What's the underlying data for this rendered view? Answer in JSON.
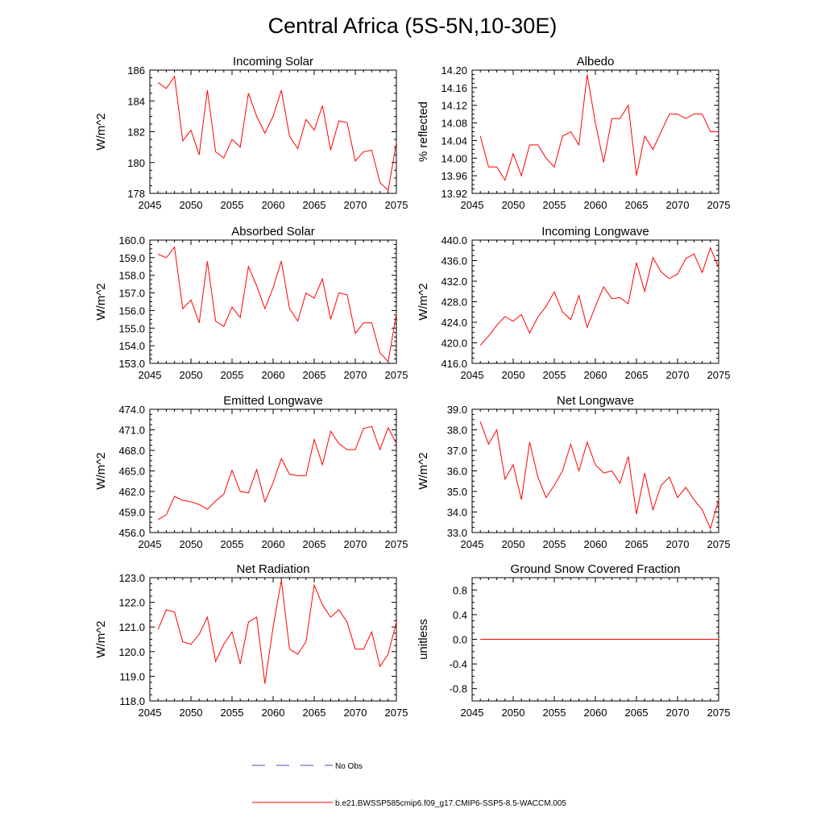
{
  "page": {
    "title": "Central Africa (5S-5N,10-30E)"
  },
  "legend": {
    "items": [
      {
        "label": "No Obs",
        "color": "#4a4aa8",
        "dashed": true
      },
      {
        "label": "b.e21.BWSSP585cmip6.f09_g17.CMIP6-SSP5-8.5-WACCM.005",
        "color": "#ff0000",
        "dashed": false
      }
    ]
  },
  "chart_data": [
    {
      "type": "line",
      "title": "Incoming Solar",
      "ylabel": "W/m^2",
      "xlim": [
        2045,
        2075
      ],
      "ylim": [
        178,
        186
      ],
      "xticks": [
        2045,
        2050,
        2055,
        2060,
        2065,
        2070,
        2075
      ],
      "xtick_labels": [
        "2045",
        "2050",
        "2055",
        "2060",
        "2065",
        "2070",
        "2075"
      ],
      "yticks": [
        178,
        180,
        182,
        184,
        186
      ],
      "ytick_labels": [
        "178",
        "180",
        "182",
        "184",
        "186"
      ],
      "x": [
        2046,
        2047,
        2048,
        2049,
        2050,
        2051,
        2052,
        2053,
        2054,
        2055,
        2056,
        2057,
        2058,
        2059,
        2060,
        2061,
        2062,
        2063,
        2064,
        2065,
        2066,
        2067,
        2068,
        2069,
        2070,
        2071,
        2072,
        2073,
        2074,
        2075
      ],
      "series": [
        {
          "color": "#ff0000",
          "values": [
            185.2,
            184.8,
            185.6,
            181.4,
            182.1,
            180.5,
            184.7,
            180.7,
            180.3,
            181.5,
            181.0,
            184.5,
            183.0,
            181.9,
            183.0,
            184.7,
            181.7,
            180.9,
            182.8,
            182.1,
            183.7,
            180.8,
            182.7,
            182.6,
            180.1,
            180.7,
            180.8,
            178.7,
            178.2,
            181.3
          ]
        }
      ]
    },
    {
      "type": "line",
      "title": "Albedo",
      "ylabel": "% reflected",
      "xlim": [
        2045,
        2075
      ],
      "ylim": [
        13.92,
        14.2
      ],
      "xticks": [
        2045,
        2050,
        2055,
        2060,
        2065,
        2070,
        2075
      ],
      "xtick_labels": [
        "2045",
        "2050",
        "2055",
        "2060",
        "2065",
        "2070",
        "2075"
      ],
      "yticks": [
        13.92,
        13.96,
        14.0,
        14.04,
        14.08,
        14.12,
        14.16,
        14.2
      ],
      "ytick_labels": [
        "13.92",
        "13.96",
        "14.00",
        "14.04",
        "14.08",
        "14.12",
        "14.16",
        "14.20"
      ],
      "x": [
        2046,
        2047,
        2048,
        2049,
        2050,
        2051,
        2052,
        2053,
        2054,
        2055,
        2056,
        2057,
        2058,
        2059,
        2060,
        2061,
        2062,
        2063,
        2064,
        2065,
        2066,
        2067,
        2068,
        2069,
        2070,
        2071,
        2072,
        2073,
        2074,
        2075
      ],
      "series": [
        {
          "color": "#ff0000",
          "values": [
            14.05,
            13.98,
            13.98,
            13.95,
            14.01,
            13.96,
            14.03,
            14.03,
            14.0,
            13.98,
            14.05,
            14.06,
            14.03,
            14.19,
            14.08,
            13.99,
            14.09,
            14.09,
            14.12,
            13.96,
            14.05,
            14.02,
            14.06,
            14.1,
            14.1,
            14.09,
            14.1,
            14.1,
            14.06,
            14.06
          ]
        }
      ]
    },
    {
      "type": "line",
      "title": "Absorbed Solar",
      "ylabel": "W/m^2",
      "xlim": [
        2045,
        2075
      ],
      "ylim": [
        153,
        160
      ],
      "xticks": [
        2045,
        2050,
        2055,
        2060,
        2065,
        2070,
        2075
      ],
      "xtick_labels": [
        "2045",
        "2050",
        "2055",
        "2060",
        "2065",
        "2070",
        "2075"
      ],
      "yticks": [
        153,
        154,
        155,
        156,
        157,
        158,
        159,
        160
      ],
      "ytick_labels": [
        "153.0",
        "154.0",
        "155.0",
        "156.0",
        "157.0",
        "158.0",
        "159.0",
        "160.0"
      ],
      "x": [
        2046,
        2047,
        2048,
        2049,
        2050,
        2051,
        2052,
        2053,
        2054,
        2055,
        2056,
        2057,
        2058,
        2059,
        2060,
        2061,
        2062,
        2063,
        2064,
        2065,
        2066,
        2067,
        2068,
        2069,
        2070,
        2071,
        2072,
        2073,
        2074,
        2075
      ],
      "series": [
        {
          "color": "#ff0000",
          "values": [
            159.2,
            159.0,
            159.6,
            156.1,
            156.6,
            155.3,
            158.8,
            155.4,
            155.1,
            156.2,
            155.6,
            158.5,
            157.4,
            156.1,
            157.3,
            158.8,
            156.1,
            155.4,
            157.0,
            156.7,
            157.8,
            155.5,
            157.0,
            156.9,
            154.7,
            155.3,
            155.3,
            153.6,
            153.1,
            155.8
          ]
        }
      ]
    },
    {
      "type": "line",
      "title": "Incoming Longwave",
      "ylabel": "W/m^2",
      "xlim": [
        2045,
        2075
      ],
      "ylim": [
        416,
        440
      ],
      "xticks": [
        2045,
        2050,
        2055,
        2060,
        2065,
        2070,
        2075
      ],
      "xtick_labels": [
        "2045",
        "2050",
        "2055",
        "2060",
        "2065",
        "2070",
        "2075"
      ],
      "yticks": [
        416,
        420,
        424,
        428,
        432,
        436,
        440
      ],
      "ytick_labels": [
        "416.0",
        "420.0",
        "424.0",
        "428.0",
        "432.0",
        "436.0",
        "440.0"
      ],
      "x": [
        2046,
        2047,
        2048,
        2049,
        2050,
        2051,
        2052,
        2053,
        2054,
        2055,
        2056,
        2057,
        2058,
        2059,
        2060,
        2061,
        2062,
        2063,
        2064,
        2065,
        2066,
        2067,
        2068,
        2069,
        2070,
        2071,
        2072,
        2073,
        2074,
        2075
      ],
      "series": [
        {
          "color": "#ff0000",
          "values": [
            419.5,
            421.3,
            423.4,
            425.1,
            424.2,
            425.5,
            421.9,
            425.0,
            427.1,
            429.9,
            426.0,
            424.5,
            429.2,
            423.0,
            427.1,
            430.9,
            428.6,
            428.8,
            427.6,
            435.6,
            430.0,
            436.6,
            433.8,
            432.5,
            433.4,
            436.4,
            437.3,
            433.7,
            438.5,
            434.6
          ]
        }
      ]
    },
    {
      "type": "line",
      "title": "Emitted Longwave",
      "ylabel": "W/m^2",
      "xlim": [
        2045,
        2075
      ],
      "ylim": [
        456,
        474
      ],
      "xticks": [
        2045,
        2050,
        2055,
        2060,
        2065,
        2070,
        2075
      ],
      "xtick_labels": [
        "2045",
        "2050",
        "2055",
        "2060",
        "2065",
        "2070",
        "2075"
      ],
      "yticks": [
        456,
        459,
        462,
        465,
        468,
        471,
        474
      ],
      "ytick_labels": [
        "456.0",
        "459.0",
        "462.0",
        "465.0",
        "468.0",
        "471.0",
        "474.0"
      ],
      "x": [
        2046,
        2047,
        2048,
        2049,
        2050,
        2051,
        2052,
        2053,
        2054,
        2055,
        2056,
        2057,
        2058,
        2059,
        2060,
        2061,
        2062,
        2063,
        2064,
        2065,
        2066,
        2067,
        2068,
        2069,
        2070,
        2071,
        2072,
        2073,
        2074,
        2075
      ],
      "series": [
        {
          "color": "#ff0000",
          "values": [
            457.9,
            458.6,
            461.3,
            460.7,
            460.5,
            460.1,
            459.4,
            460.6,
            461.6,
            465.1,
            462.0,
            461.8,
            465.2,
            460.5,
            463.3,
            466.8,
            464.5,
            464.3,
            464.3,
            469.6,
            465.9,
            470.8,
            469.0,
            468.1,
            468.1,
            471.2,
            471.5,
            468.1,
            471.3,
            469.0
          ]
        }
      ]
    },
    {
      "type": "line",
      "title": "Net Longwave",
      "ylabel": "W/m^2",
      "xlim": [
        2045,
        2075
      ],
      "ylim": [
        33,
        39
      ],
      "xticks": [
        2045,
        2050,
        2055,
        2060,
        2065,
        2070,
        2075
      ],
      "xtick_labels": [
        "2045",
        "2050",
        "2055",
        "2060",
        "2065",
        "2070",
        "2075"
      ],
      "yticks": [
        33,
        34,
        35,
        36,
        37,
        38,
        39
      ],
      "ytick_labels": [
        "33.0",
        "34.0",
        "35.0",
        "36.0",
        "37.0",
        "38.0",
        "39.0"
      ],
      "x": [
        2046,
        2047,
        2048,
        2049,
        2050,
        2051,
        2052,
        2053,
        2054,
        2055,
        2056,
        2057,
        2058,
        2059,
        2060,
        2061,
        2062,
        2063,
        2064,
        2065,
        2066,
        2067,
        2068,
        2069,
        2070,
        2071,
        2072,
        2073,
        2074,
        2075
      ],
      "series": [
        {
          "color": "#ff0000",
          "values": [
            38.4,
            37.3,
            38.0,
            35.6,
            36.3,
            34.6,
            37.4,
            35.7,
            34.7,
            35.3,
            36.0,
            37.3,
            36.0,
            37.4,
            36.3,
            35.9,
            36.0,
            35.4,
            36.7,
            33.9,
            35.9,
            34.1,
            35.3,
            35.7,
            34.7,
            35.2,
            34.6,
            34.1,
            33.2,
            34.6
          ]
        }
      ]
    },
    {
      "type": "line",
      "title": "Net Radiation",
      "ylabel": "W/m^2",
      "xlim": [
        2045,
        2075
      ],
      "ylim": [
        118,
        123
      ],
      "xticks": [
        2045,
        2050,
        2055,
        2060,
        2065,
        2070,
        2075
      ],
      "xtick_labels": [
        "2045",
        "2050",
        "2055",
        "2060",
        "2065",
        "2070",
        "2075"
      ],
      "yticks": [
        118,
        119,
        120,
        121,
        122,
        123
      ],
      "ytick_labels": [
        "118.0",
        "119.0",
        "120.0",
        "121.0",
        "122.0",
        "123.0"
      ],
      "x": [
        2046,
        2047,
        2048,
        2049,
        2050,
        2051,
        2052,
        2053,
        2054,
        2055,
        2056,
        2057,
        2058,
        2059,
        2060,
        2061,
        2062,
        2063,
        2064,
        2065,
        2066,
        2067,
        2068,
        2069,
        2070,
        2071,
        2072,
        2073,
        2074,
        2075
      ],
      "series": [
        {
          "color": "#ff0000",
          "values": [
            120.9,
            121.7,
            121.6,
            120.4,
            120.3,
            120.7,
            121.4,
            119.6,
            120.3,
            120.8,
            119.5,
            121.2,
            121.4,
            118.7,
            121.0,
            122.9,
            120.1,
            119.9,
            120.4,
            122.7,
            121.9,
            121.4,
            121.7,
            121.2,
            120.1,
            120.1,
            120.8,
            119.4,
            119.9,
            121.2
          ]
        }
      ]
    },
    {
      "type": "line",
      "title": "Ground Snow Covered Fraction",
      "ylabel": "unitless",
      "xlim": [
        2045,
        2075
      ],
      "ylim": [
        -1,
        1
      ],
      "xticks": [
        2045,
        2050,
        2055,
        2060,
        2065,
        2070,
        2075
      ],
      "xtick_labels": [
        "2045",
        "2050",
        "2055",
        "2060",
        "2065",
        "2070",
        "2075"
      ],
      "yticks": [
        -0.8,
        -0.4,
        0.0,
        0.4,
        0.8
      ],
      "ytick_labels": [
        "-0.8",
        "-0.4",
        "0.0",
        "0.4",
        "0.8"
      ],
      "x": [
        2046,
        2075
      ],
      "series": [
        {
          "color": "#ff0000",
          "values": [
            0,
            0
          ]
        }
      ]
    }
  ]
}
